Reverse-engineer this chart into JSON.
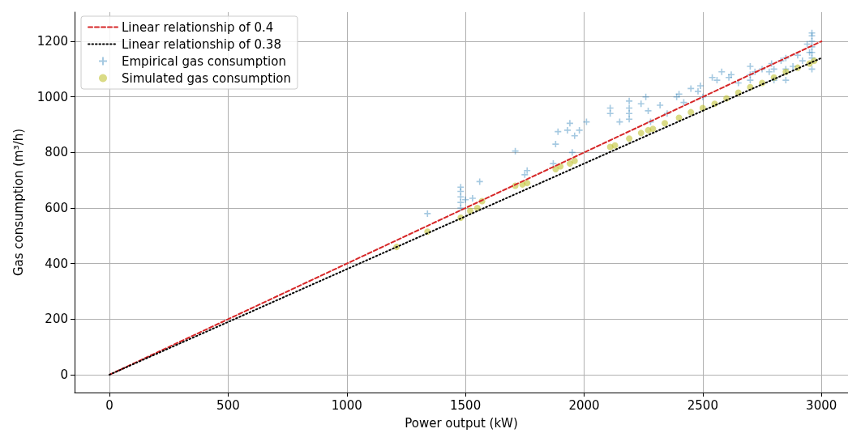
{
  "chart_data": {
    "type": "scatter",
    "xlabel": "Power output (kW)",
    "ylabel": "Gas consumption (m³/h)",
    "xlim": [
      -147,
      3112
    ],
    "ylim": [
      -64,
      1305
    ],
    "xticks": [
      0,
      500,
      1000,
      1500,
      2000,
      2500,
      3000
    ],
    "yticks": [
      0,
      200,
      400,
      600,
      800,
      1000,
      1200
    ],
    "grid": true,
    "legend": "top left",
    "series": [
      {
        "name": "Linear relationship of 0.4",
        "type": "line",
        "color": "#d62728",
        "line_style": "dashed",
        "marker": "none",
        "x": [
          0,
          3000
        ],
        "values": [
          0,
          1200
        ]
      },
      {
        "name": "Linear relationship of 0.38",
        "type": "line",
        "color": "#000000",
        "line_style": "dotted",
        "marker": "none",
        "x": [
          0,
          3000
        ],
        "values": [
          0,
          1140
        ]
      },
      {
        "name": "Empirical gas consumption",
        "color": "#1f77b4",
        "marker": "cross",
        "x": [
          1340,
          1480,
          1480,
          1480,
          1480,
          1480,
          1500,
          1530,
          1560,
          1710,
          1750,
          1760,
          1870,
          1890,
          1880,
          1930,
          1940,
          1950,
          1980,
          2010,
          1960,
          2110,
          2110,
          2150,
          2190,
          2190,
          2190,
          2190,
          2240,
          2260,
          2270,
          2280,
          2320,
          2350,
          2390,
          2400,
          2420,
          2450,
          2480,
          2490,
          2500,
          2540,
          2560,
          2580,
          2610,
          2620,
          2650,
          2700,
          2700,
          2700,
          2720,
          2750,
          2780,
          2790,
          2800,
          2800,
          2830,
          2850,
          2850,
          2850,
          2880,
          2900,
          2920,
          2950,
          2960,
          2960,
          2960,
          2960,
          2960,
          2960,
          2960,
          2940
        ],
        "values": [
          580,
          600,
          620,
          640,
          660,
          675,
          630,
          635,
          695,
          805,
          720,
          735,
          760,
          875,
          830,
          880,
          905,
          800,
          880,
          910,
          860,
          940,
          960,
          910,
          920,
          940,
          960,
          985,
          975,
          1000,
          950,
          910,
          970,
          940,
          1000,
          1010,
          980,
          1030,
          1020,
          1040,
          1000,
          1070,
          1060,
          1090,
          1070,
          1080,
          1050,
          1060,
          1080,
          1110,
          1090,
          1100,
          1090,
          1120,
          1060,
          1100,
          1130,
          1060,
          1100,
          1140,
          1110,
          1150,
          1130,
          1160,
          1140,
          1160,
          1180,
          1200,
          1220,
          1230,
          1100,
          1190
        ]
      },
      {
        "name": "Simulated gas consumption",
        "color": "#bcbd22",
        "marker": "circle",
        "x": [
          1210,
          1340,
          1480,
          1520,
          1550,
          1570,
          1710,
          1740,
          1760,
          1880,
          1900,
          1940,
          1960,
          2110,
          2130,
          2190,
          2240,
          2270,
          2290,
          2340,
          2400,
          2450,
          2500,
          2550,
          2600,
          2650,
          2700,
          2750,
          2800,
          2850,
          2900,
          2950,
          2970
        ],
        "values": [
          460,
          515,
          565,
          590,
          600,
          625,
          680,
          685,
          690,
          740,
          750,
          760,
          770,
          820,
          825,
          850,
          870,
          880,
          885,
          905,
          925,
          945,
          960,
          975,
          995,
          1015,
          1035,
          1050,
          1070,
          1090,
          1105,
          1120,
          1130
        ]
      }
    ]
  }
}
